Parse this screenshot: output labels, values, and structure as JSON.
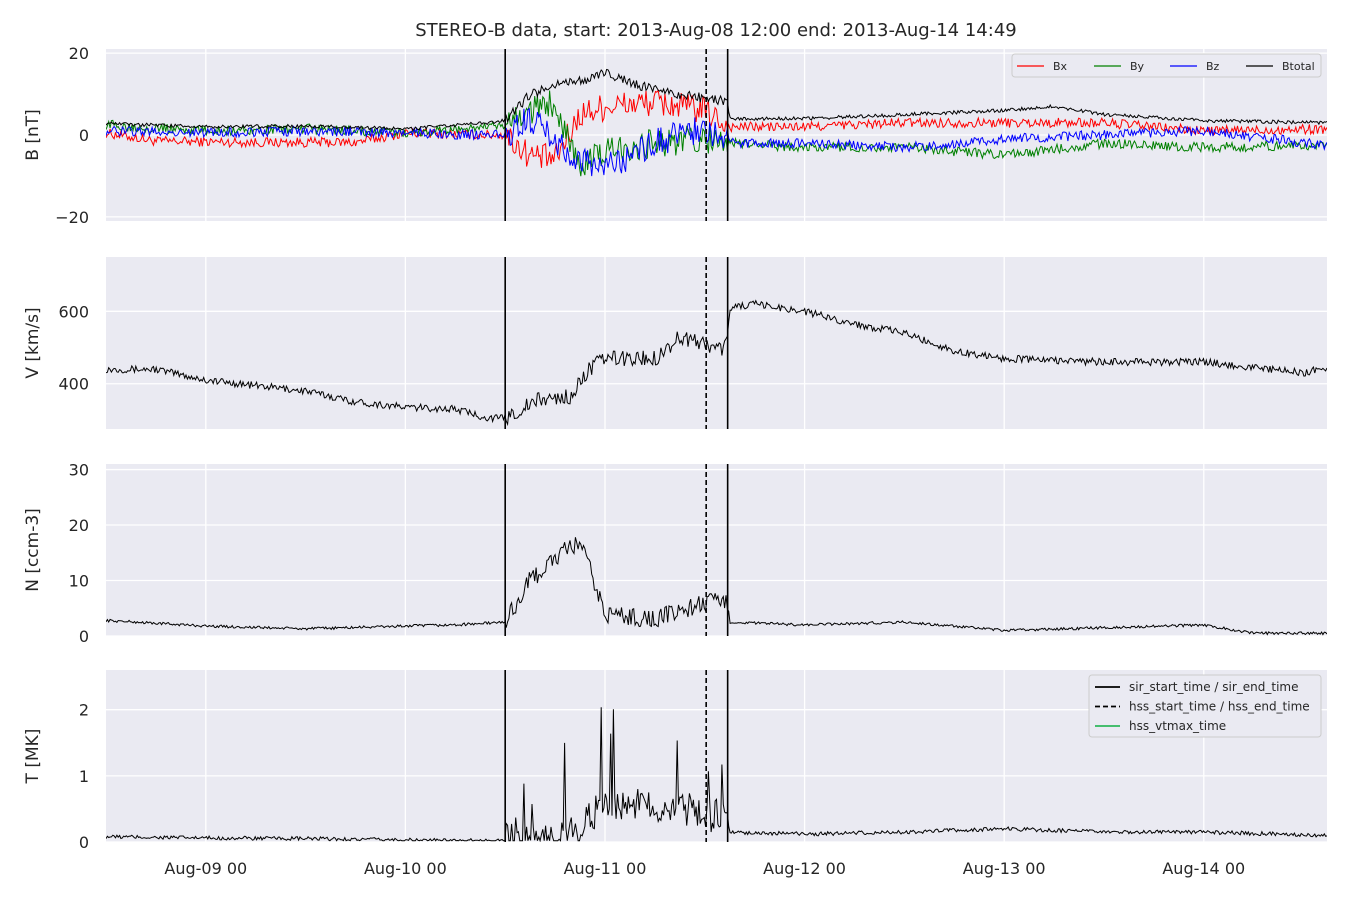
{
  "chart_data": {
    "type": "line",
    "title": "STEREO-B data, start: 2013-Aug-08 12:00  end: 2013-Aug-14 14:49",
    "x_range": [
      "2013-08-08 12:00",
      "2013-08-14 14:49"
    ],
    "x_ticks": [
      "Aug-09 00",
      "Aug-10 00",
      "Aug-11 00",
      "Aug-12 00",
      "Aug-13 00",
      "Aug-14 00"
    ],
    "event_lines": {
      "sir_start_time": "2013-08-10 12:00",
      "hss_start_time": "2013-08-11 12:10",
      "sir_end_time": "2013-08-11 14:45"
    },
    "legend_events": [
      "sir_start_time / sir_end_time",
      "hss_start_time / hss_end_time",
      "hss_vtmax_time"
    ],
    "grid": true,
    "panels": [
      {
        "id": "B",
        "ylabel": "B [nT]",
        "ylim": [
          -21,
          21
        ],
        "yticks": [
          20,
          0,
          -20
        ],
        "ytick_labels": [
          "20",
          "0",
          "−20"
        ],
        "legend": "top-right",
        "series": [
          {
            "name": "Bx",
            "color": "#ff0000",
            "points": [
              [
                "2013-08-08 12:00",
                0.5
              ],
              [
                "2013-08-08 18:00",
                -1.5
              ],
              [
                "2013-08-09 06:00",
                -1.8
              ],
              [
                "2013-08-09 18:00",
                -1.8
              ],
              [
                "2013-08-10 00:00",
                0.5
              ],
              [
                "2013-08-10 10:00",
                0
              ],
              [
                "2013-08-10 12:00",
                0
              ],
              [
                "2013-08-10 15:00",
                -5
              ],
              [
                "2013-08-10 18:00",
                -6
              ],
              [
                "2013-08-10 21:00",
                5
              ],
              [
                "2013-08-11 00:00",
                7
              ],
              [
                "2013-08-11 06:00",
                8
              ],
              [
                "2013-08-11 12:00",
                6
              ],
              [
                "2013-08-11 15:00",
                2
              ],
              [
                "2013-08-12 00:00",
                2
              ],
              [
                "2013-08-12 12:00",
                3
              ],
              [
                "2013-08-13 00:00",
                3
              ],
              [
                "2013-08-13 12:00",
                3
              ],
              [
                "2013-08-14 00:00",
                1
              ],
              [
                "2013-08-14 14:49",
                1.5
              ]
            ]
          },
          {
            "name": "By",
            "color": "#008000",
            "points": [
              [
                "2013-08-08 12:00",
                2.5
              ],
              [
                "2013-08-09 00:00",
                1
              ],
              [
                "2013-08-09 12:00",
                1.5
              ],
              [
                "2013-08-10 00:00",
                0.5
              ],
              [
                "2013-08-10 10:00",
                2
              ],
              [
                "2013-08-10 12:00",
                2
              ],
              [
                "2013-08-10 15:00",
                6
              ],
              [
                "2013-08-10 18:00",
                8
              ],
              [
                "2013-08-10 21:00",
                -8
              ],
              [
                "2013-08-11 00:00",
                -4
              ],
              [
                "2013-08-11 06:00",
                -2
              ],
              [
                "2013-08-11 12:00",
                -1
              ],
              [
                "2013-08-11 15:00",
                -2
              ],
              [
                "2013-08-12 00:00",
                -3
              ],
              [
                "2013-08-12 12:00",
                -3
              ],
              [
                "2013-08-13 00:00",
                -5
              ],
              [
                "2013-08-13 12:00",
                -2
              ],
              [
                "2013-08-14 00:00",
                -3
              ],
              [
                "2013-08-14 14:49",
                -2.5
              ]
            ]
          },
          {
            "name": "Bz",
            "color": "#0000ff",
            "points": [
              [
                "2013-08-08 12:00",
                1
              ],
              [
                "2013-08-09 00:00",
                0.5
              ],
              [
                "2013-08-09 12:00",
                1
              ],
              [
                "2013-08-10 00:00",
                0.5
              ],
              [
                "2013-08-10 10:00",
                0
              ],
              [
                "2013-08-10 12:00",
                0
              ],
              [
                "2013-08-10 15:00",
                4
              ],
              [
                "2013-08-10 18:00",
                -2
              ],
              [
                "2013-08-10 21:00",
                -6
              ],
              [
                "2013-08-11 00:00",
                -8
              ],
              [
                "2013-08-11 06:00",
                -2
              ],
              [
                "2013-08-11 12:00",
                2
              ],
              [
                "2013-08-11 15:00",
                -2
              ],
              [
                "2013-08-12 00:00",
                -2
              ],
              [
                "2013-08-12 12:00",
                -3
              ],
              [
                "2013-08-13 00:00",
                -1
              ],
              [
                "2013-08-13 12:00",
                0
              ],
              [
                "2013-08-14 00:00",
                1
              ],
              [
                "2013-08-14 14:49",
                -2.5
              ]
            ]
          },
          {
            "name": "Btotal",
            "color": "#000000",
            "points": [
              [
                "2013-08-08 12:00",
                2.8
              ],
              [
                "2013-08-09 00:00",
                2
              ],
              [
                "2013-08-09 12:00",
                2.2
              ],
              [
                "2013-08-10 00:00",
                1.5
              ],
              [
                "2013-08-10 10:00",
                3
              ],
              [
                "2013-08-10 12:00",
                3.5
              ],
              [
                "2013-08-10 15:00",
                10
              ],
              [
                "2013-08-10 18:00",
                12
              ],
              [
                "2013-08-10 21:00",
                13
              ],
              [
                "2013-08-11 00:00",
                15
              ],
              [
                "2013-08-11 06:00",
                11
              ],
              [
                "2013-08-11 12:00",
                9
              ],
              [
                "2013-08-11 14:45",
                8
              ],
              [
                "2013-08-11 15:00",
                4
              ],
              [
                "2013-08-12 00:00",
                4
              ],
              [
                "2013-08-12 12:00",
                5
              ],
              [
                "2013-08-13 00:00",
                6
              ],
              [
                "2013-08-13 06:00",
                7
              ],
              [
                "2013-08-13 12:00",
                5
              ],
              [
                "2013-08-14 00:00",
                3.5
              ],
              [
                "2013-08-14 14:49",
                3
              ]
            ]
          }
        ]
      },
      {
        "id": "V",
        "ylabel": "V [km/s]",
        "ylim": [
          275,
          750
        ],
        "yticks": [
          600,
          400
        ],
        "ytick_labels": [
          "600",
          "400"
        ],
        "series": [
          {
            "name": "V",
            "color": "#000000",
            "points": [
              [
                "2013-08-08 12:00",
                440
              ],
              [
                "2013-08-08 18:00",
                440
              ],
              [
                "2013-08-09 00:00",
                410
              ],
              [
                "2013-08-09 06:00",
                395
              ],
              [
                "2013-08-09 12:00",
                380
              ],
              [
                "2013-08-09 18:00",
                350
              ],
              [
                "2013-08-10 00:00",
                335
              ],
              [
                "2013-08-10 06:00",
                330
              ],
              [
                "2013-08-10 10:00",
                305
              ],
              [
                "2013-08-10 12:00",
                305
              ],
              [
                "2013-08-10 16:00",
                355
              ],
              [
                "2013-08-10 20:00",
                365
              ],
              [
                "2013-08-10 22:00",
                440
              ],
              [
                "2013-08-11 00:00",
                470
              ],
              [
                "2013-08-11 06:00",
                470
              ],
              [
                "2013-08-11 09:00",
                530
              ],
              [
                "2013-08-11 12:00",
                510
              ],
              [
                "2013-08-11 14:00",
                495
              ],
              [
                "2013-08-11 14:45",
                520
              ],
              [
                "2013-08-11 15:00",
                610
              ],
              [
                "2013-08-11 18:00",
                620
              ],
              [
                "2013-08-12 00:00",
                600
              ],
              [
                "2013-08-12 06:00",
                565
              ],
              [
                "2013-08-12 12:00",
                540
              ],
              [
                "2013-08-12 18:00",
                490
              ],
              [
                "2013-08-13 00:00",
                470
              ],
              [
                "2013-08-13 12:00",
                460
              ],
              [
                "2013-08-14 00:00",
                460
              ],
              [
                "2013-08-14 06:00",
                445
              ],
              [
                "2013-08-14 12:00",
                430
              ],
              [
                "2013-08-14 14:49",
                445
              ]
            ]
          }
        ]
      },
      {
        "id": "N",
        "ylabel": "N [ccm-3]",
        "ylim": [
          0,
          31
        ],
        "yticks": [
          30,
          20,
          10,
          0
        ],
        "ytick_labels": [
          "30",
          "20",
          "10",
          "0"
        ],
        "series": [
          {
            "name": "N",
            "color": "#000000",
            "points": [
              [
                "2013-08-08 12:00",
                2.8
              ],
              [
                "2013-08-09 00:00",
                1.8
              ],
              [
                "2013-08-09 12:00",
                1.3
              ],
              [
                "2013-08-10 00:00",
                1.8
              ],
              [
                "2013-08-10 06:00",
                2
              ],
              [
                "2013-08-10 12:00",
                2.5
              ],
              [
                "2013-08-10 15:00",
                10
              ],
              [
                "2013-08-10 18:00",
                14
              ],
              [
                "2013-08-10 21:00",
                17
              ],
              [
                "2013-08-11 00:00",
                4
              ],
              [
                "2013-08-11 06:00",
                3
              ],
              [
                "2013-08-11 12:00",
                6
              ],
              [
                "2013-08-11 14:45",
                6
              ],
              [
                "2013-08-11 15:00",
                2.5
              ],
              [
                "2013-08-12 00:00",
                2
              ],
              [
                "2013-08-12 12:00",
                2.5
              ],
              [
                "2013-08-13 00:00",
                1
              ],
              [
                "2013-08-13 12:00",
                1.5
              ],
              [
                "2013-08-14 00:00",
                2
              ],
              [
                "2013-08-14 06:00",
                0.5
              ],
              [
                "2013-08-14 14:49",
                0.5
              ]
            ]
          }
        ]
      },
      {
        "id": "T",
        "ylabel": "T [MK]",
        "ylim": [
          0,
          2.6
        ],
        "yticks": [
          2,
          1,
          0
        ],
        "ytick_labels": [
          "2",
          "1",
          "0"
        ],
        "legend": "top-right",
        "series": [
          {
            "name": "T",
            "color": "#000000",
            "points": [
              [
                "2013-08-08 12:00",
                0.08
              ],
              [
                "2013-08-09 00:00",
                0.06
              ],
              [
                "2013-08-09 12:00",
                0.05
              ],
              [
                "2013-08-10 00:00",
                0.03
              ],
              [
                "2013-08-10 06:00",
                0.02
              ],
              [
                "2013-08-10 12:00",
                0.03
              ],
              [
                "2013-08-10 18:00",
                0.05
              ],
              [
                "2013-08-10 21:00",
                0.2
              ],
              [
                "2013-08-11 00:00",
                0.6
              ],
              [
                "2013-08-11 06:00",
                0.55
              ],
              [
                "2013-08-11 12:00",
                0.4
              ],
              [
                "2013-08-11 14:45",
                0.35
              ],
              [
                "2013-08-11 15:00",
                0.15
              ],
              [
                "2013-08-12 00:00",
                0.12
              ],
              [
                "2013-08-12 12:00",
                0.15
              ],
              [
                "2013-08-13 00:00",
                0.2
              ],
              [
                "2013-08-13 12:00",
                0.15
              ],
              [
                "2013-08-14 00:00",
                0.15
              ],
              [
                "2013-08-14 14:49",
                0.1
              ]
            ]
          }
        ]
      }
    ]
  },
  "colors": {
    "axes_bg": "#eaeaf2",
    "grid": "#ffffff",
    "hss_vtmax": "#2eb85c"
  }
}
